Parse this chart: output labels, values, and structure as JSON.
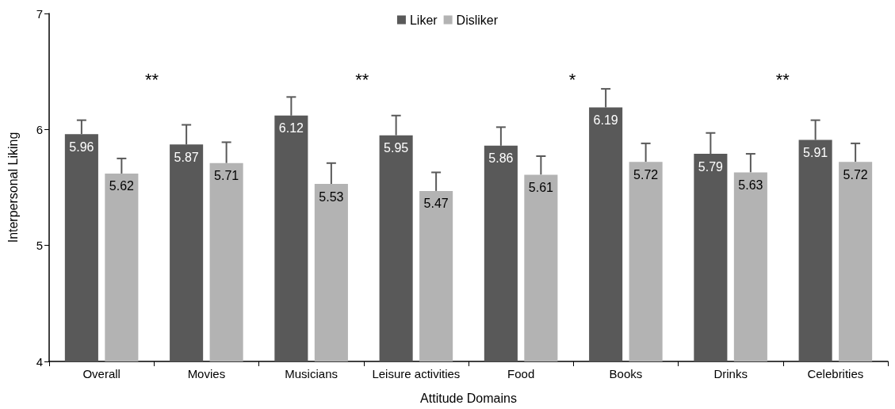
{
  "chart_data": {
    "type": "bar",
    "xlabel": "Attitude Domains",
    "ylabel": "Interpersonal Liking",
    "categories": [
      "Overall",
      "Movies",
      "Musicians",
      "Leisure activities",
      "Food",
      "Books",
      "Drinks",
      "Celebrities"
    ],
    "series": [
      {
        "name": "Liker",
        "color": "#595959",
        "values": [
          5.96,
          5.87,
          6.12,
          5.95,
          5.86,
          6.19,
          5.79,
          5.91
        ],
        "errors": [
          [
            5.96,
            6.08
          ],
          [
            5.87,
            6.04
          ],
          [
            6.12,
            6.28
          ],
          [
            5.95,
            6.12
          ],
          [
            5.86,
            6.02
          ],
          [
            6.19,
            6.35
          ],
          [
            5.79,
            5.97
          ],
          [
            5.91,
            6.08
          ]
        ]
      },
      {
        "name": "Disliker",
        "color": "#b3b3b3",
        "values": [
          5.62,
          5.71,
          5.53,
          5.47,
          5.61,
          5.72,
          5.63,
          5.72
        ],
        "errors": [
          [
            5.62,
            5.75
          ],
          [
            5.71,
            5.89
          ],
          [
            5.53,
            5.71
          ],
          [
            5.47,
            5.63
          ],
          [
            5.61,
            5.77
          ],
          [
            5.72,
            5.88
          ],
          [
            5.63,
            5.79
          ],
          [
            5.72,
            5.88
          ]
        ]
      }
    ],
    "ylim": [
      4,
      7
    ],
    "yticks": [
      4,
      5,
      6,
      7
    ],
    "grid": false,
    "legend": "top",
    "data_labels": true,
    "annotations": [
      "**",
      "**",
      "*",
      "**"
    ]
  }
}
